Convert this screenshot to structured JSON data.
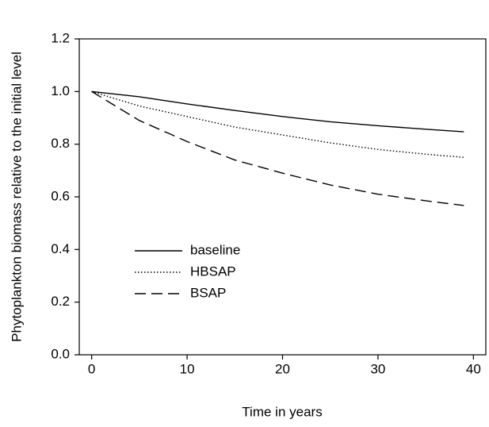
{
  "chart_data": {
    "type": "line",
    "xlabel": "Time in years",
    "ylabel": "Phytoplankton biomass relative to the initial level",
    "x": [
      0,
      5,
      10,
      15,
      20,
      25,
      30,
      35,
      39
    ],
    "series": [
      {
        "name": "baseline",
        "color": "#000000",
        "dash": "solid",
        "values": [
          1.0,
          0.98,
          0.953,
          0.928,
          0.905,
          0.885,
          0.87,
          0.857,
          0.847
        ]
      },
      {
        "name": "HBSAP",
        "color": "#000000",
        "dash": "dotted",
        "values": [
          1.0,
          0.945,
          0.905,
          0.865,
          0.835,
          0.805,
          0.78,
          0.762,
          0.75
        ]
      },
      {
        "name": "BSAP",
        "color": "#000000",
        "dash": "dashed",
        "values": [
          1.0,
          0.89,
          0.81,
          0.74,
          0.69,
          0.645,
          0.61,
          0.585,
          0.567
        ]
      }
    ],
    "xlim": [
      -1.3,
      41.3
    ],
    "xticks": [
      0,
      10,
      20,
      30,
      40
    ],
    "ylim": [
      0,
      1.2
    ],
    "yticks": [
      {
        "value": 0,
        "label": "0.0"
      },
      {
        "value": 0.2,
        "label": "0.2"
      },
      {
        "value": 0.4,
        "label": "0.4"
      },
      {
        "value": 0.6,
        "label": "0.6"
      },
      {
        "value": 0.8,
        "label": "0.8"
      },
      {
        "value": 1,
        "label": "1.0"
      },
      {
        "value": 1.2,
        "label": "1.2"
      }
    ],
    "grid": false,
    "legend": "lower-left"
  }
}
